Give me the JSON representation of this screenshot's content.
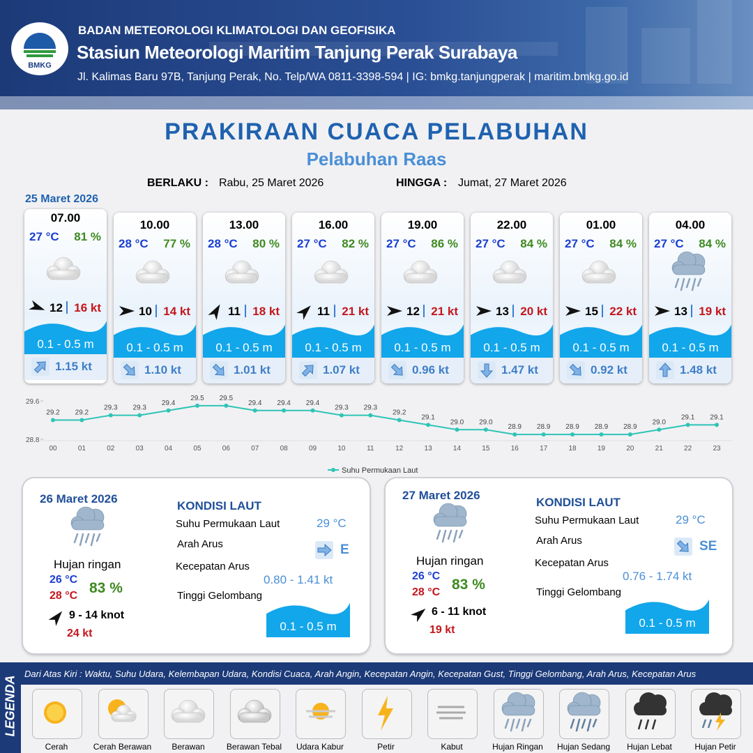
{
  "header": {
    "logo": "BMKG",
    "org": "BADAN METEOROLOGI KLIMATOLOGI DAN GEOFISIKA",
    "station": "Stasiun Meteorologi Maritim Tanjung Perak Surabaya",
    "address": "Jl. Kalimas Baru 97B, Tanjung Perak, No. Telp/WA 0811-3398-594 | IG: bmkg.tanjungperak | maritim.bmkg.go.id"
  },
  "title": "PRAKIRAAN CUACA PELABUHAN",
  "subtitle": "Pelabuhan Raas",
  "validity": {
    "from_label": "BERLAKU :",
    "from": "Rabu, 25 Maret 2026",
    "to_label": "HINGGA :",
    "to": "Jumat, 27 Maret 2026"
  },
  "day1": {
    "date": "25 Maret 2026",
    "forecasts": [
      {
        "time": "07.00",
        "temp": "27 °C",
        "humidity": "81 %",
        "wind": "12",
        "gust": "16 kt",
        "wave": "0.1 - 0.5 m",
        "current": "1.15 kt"
      },
      {
        "time": "10.00",
        "temp": "28 °C",
        "humidity": "77 %",
        "wind": "10",
        "gust": "14 kt",
        "wave": "0.1 - 0.5 m",
        "current": "1.10 kt"
      },
      {
        "time": "13.00",
        "temp": "28 °C",
        "humidity": "80 %",
        "wind": "11",
        "gust": "18 kt",
        "wave": "0.1 - 0.5 m",
        "current": "1.01 kt"
      },
      {
        "time": "16.00",
        "temp": "27 °C",
        "humidity": "82 %",
        "wind": "11",
        "gust": "21 kt",
        "wave": "0.1 - 0.5 m",
        "current": "1.07 kt"
      },
      {
        "time": "19.00",
        "temp": "27 °C",
        "humidity": "86 %",
        "wind": "12",
        "gust": "21 kt",
        "wave": "0.1 - 0.5 m",
        "current": "0.96 kt"
      },
      {
        "time": "22.00",
        "temp": "27 °C",
        "humidity": "84 %",
        "wind": "13",
        "gust": "20 kt",
        "wave": "0.1 - 0.5 m",
        "current": "1.47 kt"
      },
      {
        "time": "01.00",
        "temp": "27 °C",
        "humidity": "84 %",
        "wind": "15",
        "gust": "22 kt",
        "wave": "0.1 - 0.5 m",
        "current": "0.92 kt"
      },
      {
        "time": "04.00",
        "temp": "27 °C",
        "humidity": "84 %",
        "wind": "13",
        "gust": "19 kt",
        "wave": "0.1 - 0.5 m",
        "current": "1.48 kt"
      }
    ]
  },
  "chart_data": {
    "type": "line",
    "categories": [
      "00",
      "01",
      "02",
      "03",
      "04",
      "05",
      "06",
      "07",
      "08",
      "09",
      "10",
      "11",
      "12",
      "13",
      "14",
      "15",
      "16",
      "17",
      "18",
      "19",
      "20",
      "21",
      "22",
      "23"
    ],
    "series": [
      {
        "name": "Suhu Permukaan Laut",
        "color": "#2ec4b6",
        "values": [
          29.2,
          29.2,
          29.3,
          29.3,
          29.4,
          29.5,
          29.5,
          29.4,
          29.4,
          29.4,
          29.3,
          29.3,
          29.2,
          29.1,
          29.0,
          29.0,
          28.9,
          28.9,
          28.9,
          28.9,
          28.9,
          29.0,
          29.1,
          29.1
        ],
        "value_labels": [
          "29.2",
          "29.2",
          "29.3",
          "29.3",
          "29.4",
          "29.5",
          "29.5",
          "29.4",
          "29.4",
          "29.4",
          "29.3",
          "29.3",
          "29.2",
          "29.1",
          "29.0",
          "29.0",
          "28.9",
          "28.9",
          "28.9",
          "28.9",
          "28.9",
          "29.0",
          "29.1",
          "29.1"
        ]
      }
    ],
    "ylim": [
      28.8,
      29.6
    ],
    "yticks": [
      28.8,
      29.6
    ],
    "legend": "bottom"
  },
  "outlook": [
    {
      "date": "26 Maret 2026",
      "weather": "Hujan ringan",
      "temp_min": "26 °C",
      "temp_max": "28 °C",
      "humidity": "83 %",
      "wind": "9 - 14 knot",
      "gust": "24 kt",
      "sea_title": "KONDISI LAUT",
      "sst_label": "Suhu Permukaan Laut",
      "sst": "29 °C",
      "dir_label": "Arah Arus",
      "dir": "E",
      "speed_label": "Kecepatan Arus",
      "speed": "0.80 - 1.41 kt",
      "wave_label": "Tinggi Gelombang",
      "wave": "0.1 - 0.5 m"
    },
    {
      "date": "27 Maret 2026",
      "weather": "Hujan ringan",
      "temp_min": "26 °C",
      "temp_max": "28 °C",
      "humidity": "83 %",
      "wind": "6 - 11 knot",
      "gust": "19 kt",
      "sea_title": "KONDISI LAUT",
      "sst_label": "Suhu Permukaan Laut",
      "sst": "29 °C",
      "dir_label": "Arah Arus",
      "dir": "SE",
      "speed_label": "Kecepatan Arus",
      "speed": "0.76 - 1.74 kt",
      "wave_label": "Tinggi Gelombang",
      "wave": "0.1 - 0.5 m"
    }
  ],
  "legend": {
    "title": "LEGENDA",
    "description": "Dari Atas Kiri : Waktu, Suhu Udara, Kelembapan Udara, Kondisi Cuaca, Arah Angin, Kecepatan Angin, Kecepatan Gust, Tinggi Gelombang, Arah Arus, Kecepatan Arus",
    "items": [
      "Cerah",
      "Cerah Berawan",
      "Berawan",
      "Berawan Tebal",
      "Udara Kabur",
      "Petir",
      "Kabut",
      "Hujan Ringan",
      "Hujan Sedang",
      "Hujan Lebat",
      "Hujan Petir"
    ]
  }
}
